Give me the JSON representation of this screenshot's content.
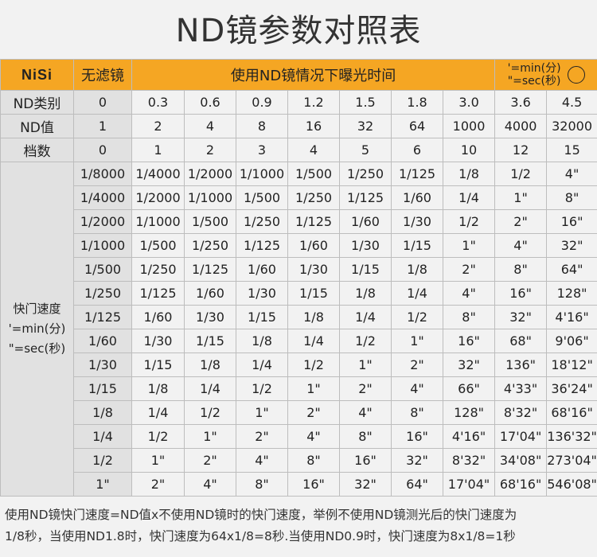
{
  "title": "ND镜参数对照表",
  "header": {
    "brand": "NiSi",
    "no_filter": "无滤镜",
    "caption": "使用ND镜情况下曝光时间",
    "unit_min": "'=min(分)",
    "unit_sec": "\"=sec(秒)"
  },
  "rows": {
    "nd_type": {
      "label": "ND类别",
      "values": [
        "0",
        "0.3",
        "0.6",
        "0.9",
        "1.2",
        "1.5",
        "1.8",
        "3.0",
        "3.6",
        "4.5"
      ]
    },
    "nd_value": {
      "label": "ND值",
      "values": [
        "1",
        "2",
        "4",
        "8",
        "16",
        "32",
        "64",
        "1000",
        "4000",
        "32000"
      ]
    },
    "stops": {
      "label": "档数",
      "values": [
        "0",
        "1",
        "2",
        "3",
        "4",
        "5",
        "6",
        "10",
        "12",
        "15"
      ]
    }
  },
  "shutter": {
    "label": "快门速度",
    "unit_min": "'=min(分)",
    "unit_sec": "\"=sec(秒)",
    "rows": [
      [
        "1/8000",
        "1/4000",
        "1/2000",
        "1/1000",
        "1/500",
        "1/250",
        "1/125",
        "1/8",
        "1/2",
        "4\""
      ],
      [
        "1/4000",
        "1/2000",
        "1/1000",
        "1/500",
        "1/250",
        "1/125",
        "1/60",
        "1/4",
        "1\"",
        "8\""
      ],
      [
        "1/2000",
        "1/1000",
        "1/500",
        "1/250",
        "1/125",
        "1/60",
        "1/30",
        "1/2",
        "2\"",
        "16\""
      ],
      [
        "1/1000",
        "1/500",
        "1/250",
        "1/125",
        "1/60",
        "1/30",
        "1/15",
        "1\"",
        "4\"",
        "32\""
      ],
      [
        "1/500",
        "1/250",
        "1/125",
        "1/60",
        "1/30",
        "1/15",
        "1/8",
        "2\"",
        "8\"",
        "64\""
      ],
      [
        "1/250",
        "1/125",
        "1/60",
        "1/30",
        "1/15",
        "1/8",
        "1/4",
        "4\"",
        "16\"",
        "128\""
      ],
      [
        "1/125",
        "1/60",
        "1/30",
        "1/15",
        "1/8",
        "1/4",
        "1/2",
        "8\"",
        "32\"",
        "4'16\""
      ],
      [
        "1/60",
        "1/30",
        "1/15",
        "1/8",
        "1/4",
        "1/2",
        "1\"",
        "16\"",
        "68\"",
        "9'06\""
      ],
      [
        "1/30",
        "1/15",
        "1/8",
        "1/4",
        "1/2",
        "1\"",
        "2\"",
        "32\"",
        "136\"",
        "18'12\""
      ],
      [
        "1/15",
        "1/8",
        "1/4",
        "1/2",
        "1\"",
        "2\"",
        "4\"",
        "66\"",
        "4'33\"",
        "36'24\""
      ],
      [
        "1/8",
        "1/4",
        "1/2",
        "1\"",
        "2\"",
        "4\"",
        "8\"",
        "128\"",
        "8'32\"",
        "68'16\""
      ],
      [
        "1/4",
        "1/2",
        "1\"",
        "2\"",
        "4\"",
        "8\"",
        "16\"",
        "4'16\"",
        "17'04\"",
        "136'32\""
      ],
      [
        "1/2",
        "1\"",
        "2\"",
        "4\"",
        "8\"",
        "16\"",
        "32\"",
        "8'32\"",
        "34'08\"",
        "273'04\""
      ],
      [
        "1\"",
        "2\"",
        "4\"",
        "8\"",
        "16\"",
        "32\"",
        "64\"",
        "17'04\"",
        "68'16\"",
        "546'08\""
      ]
    ]
  },
  "note_line1": "使用ND镜快门速度=ND值x不使用ND镜时的快门速度，举例不使用ND镜测光后的快门速度为",
  "note_line2": "1/8秒，当使用ND1.8时，快门速度为64x1/8=8秒.当使用ND0.9时，快门速度为8x1/8=1秒"
}
